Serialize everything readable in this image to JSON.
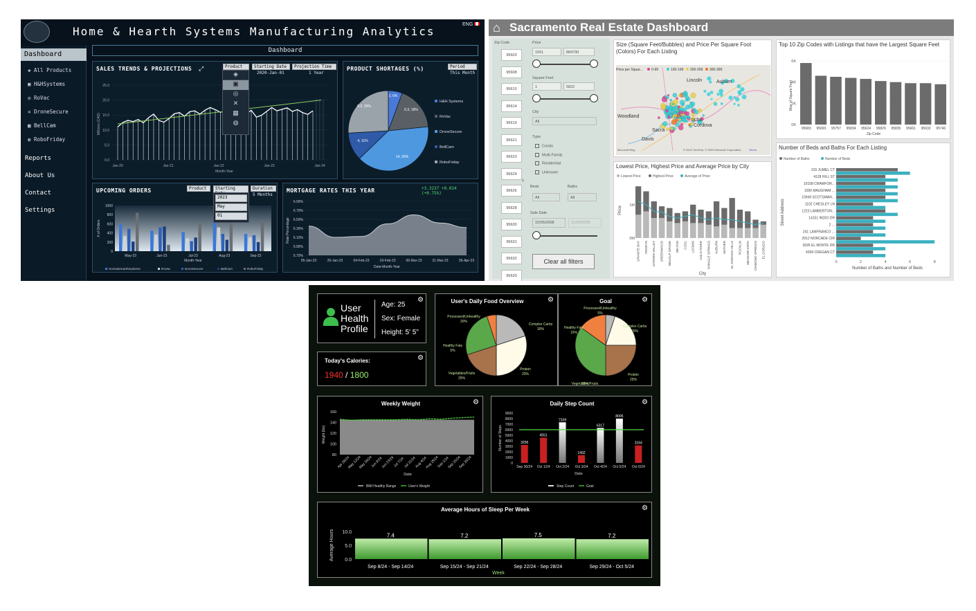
{
  "p1": {
    "title": "Home & Hearth Systems Manufacturing Analytics",
    "lang": "ENG",
    "nav": {
      "dashboard": "Dashboard",
      "reports": "Reports",
      "about": "About Us",
      "contact": "Contact",
      "settings": "Settings"
    },
    "products": [
      "All Products",
      "H&HSystems",
      "RoVac",
      "DroneSecure",
      "BellCam",
      "RoboFriday"
    ],
    "header_label": "Dashboard",
    "sales": {
      "title": "SALES TRENDS & PROJECTIONS",
      "product_sel": "Product",
      "start_sel": "Starting Date",
      "start_val": "2020-Jan-01",
      "proj_sel": "Projection Time",
      "proj_val": "1 Year",
      "ylabel": "Millions (CAD)",
      "xlabel": "Month-Year",
      "yticks": [
        "25.0",
        "20.0",
        "15.0",
        "10.0",
        "5.0",
        "0.0"
      ],
      "xticks": [
        "Jan-20",
        "Jan-21",
        "Jan-22",
        "Jan-23",
        "Jan-24"
      ]
    },
    "shortages": {
      "title": "PRODUCT SHORTAGES (%)",
      "period_sel": "Period",
      "period_val": "This Month",
      "labels": [
        "2, 6%",
        "6.3, 18%",
        "14, 39%",
        "4, 11%",
        "9.2, 26%"
      ],
      "legend": [
        "H&H Systems",
        "RoVac",
        "DroneSecure",
        "BellCam",
        "RoboFriday"
      ]
    },
    "orders": {
      "title": "UPCOMING ORDERS",
      "product_sel": "Product",
      "start_sel": "Starting Date",
      "dur_sel": "Duration",
      "dur_val": "5 Months",
      "drop": [
        "2023",
        "May",
        "01"
      ],
      "ylabel": "# of Orders",
      "xlabel": "Month-Year",
      "yticks": [
        "1000",
        "800",
        "600",
        "400",
        "200",
        "0"
      ],
      "xticks": [
        "May-23",
        "Jun-23",
        "Jul-23",
        "Aug-23",
        "Sep-23"
      ],
      "legend": [
        "Home&HearthSystems",
        "RoVac",
        "DroneSecure",
        "BellCam",
        "RoboFriday"
      ]
    },
    "mortgage": {
      "title": "MORTGAGE RATES THIS YEAR",
      "change": "+3.3237 +0.024 (+0.75%)",
      "ylabel": "Rate Percentage",
      "xlabel": "Date-Month-Year",
      "yticks": [
        "6.90%",
        "6.70%",
        "6.50%",
        "6.30%",
        "6.10%",
        "5.90%",
        "5.70%"
      ],
      "xticks": [
        "05-Jan-23",
        "20-Jan-23",
        "04-Feb-23",
        "19-Feb-23",
        "06-Mar-23",
        "21-Mar-23",
        "05-Apr-23"
      ]
    }
  },
  "p2": {
    "title": "Sacramento Real Estate Dashboard",
    "zip_label": "Zip Code",
    "zips": [
      "95603",
      "95608",
      "95610",
      "95614",
      "95619",
      "95621",
      "95623",
      "95624",
      "95626",
      "95628",
      "95630",
      "95631",
      "95632",
      "95633"
    ],
    "price_label": "Price",
    "price_min": "1551",
    "price_max": "884790",
    "sqft_label": "Square Feet",
    "sqft_min": "1",
    "sqft_max": "5822",
    "city_label": "City",
    "city_val": "All",
    "type_label": "Type",
    "types": [
      "Condo",
      "Multi-Family",
      "Residential",
      "Unknown"
    ],
    "beds_label": "Beds",
    "baths_label": "Baths",
    "beds_val": "All",
    "baths_val": "All",
    "sale_label": "Sale Date",
    "sale_from": "15/05/2008",
    "sale_to": "21/05/2008",
    "clear": "Clear all filters",
    "map": {
      "title": "Size (Square Feet/Bubbles) and Price Per Square Foot (Colors) For Each Listing",
      "legend_title": "Price per Squar...",
      "legend": [
        "0-99",
        "100-199",
        "200-299",
        "300-399"
      ],
      "legend_colors": [
        "#e0409a",
        "#2fd0d8",
        "#e8d040",
        "#f07020"
      ],
      "places": [
        "Lincoln",
        "Auburn",
        "Woodland",
        "Sacra",
        "Davis",
        "Cordova",
        "ncho"
      ],
      "credit": "© 2024 TomTom, © 2024 Microsoft Corporation",
      "terms": "Terms",
      "bing": "Microsoft Bing"
    },
    "zipbars": {
      "title": "Top 10 Zip Codes with Listings that have the Largest Square Feet",
      "ylabel": "Max of Square Feet",
      "xlabel": "Zip Code",
      "yticks": [
        "6K",
        "4K",
        "2K",
        "0K"
      ]
    },
    "price": {
      "title": "Lowest Price, Highest Price and Average Price by City",
      "legend": [
        "Lowest Price",
        "Highest Price",
        "Average of Price"
      ],
      "ylabel": "Price",
      "xlabel": "City",
      "yticks": [
        "1M",
        "0M"
      ]
    },
    "beds": {
      "title": "Number of Beds and Baths For Each Listing",
      "legend": [
        "Number of Baths",
        "Number of Beds"
      ],
      "ylabel": "Street Address",
      "xlabel": "Number of Baths and Number of Beds",
      "xticks": [
        "0",
        "2",
        "4",
        "6",
        "8"
      ]
    }
  },
  "p3": {
    "profile": {
      "title_1": "User",
      "title_2": "Health",
      "title_3": "Profile",
      "age": "Age: 25",
      "sex": "Sex: Female",
      "height": "Height: 5' 5\""
    },
    "cal": {
      "title": "Today's Calories:",
      "current": "1940",
      "sep": " / ",
      "goal": "1800"
    },
    "food": {
      "title": "User's Daily Food Overview",
      "labels": [
        "Processed/Unhealthy",
        "20%",
        "Complex Carbs",
        "30%",
        "Healthy Fats",
        "5%",
        "Protein",
        "20%",
        "Vegetables/Fruits",
        "25%"
      ]
    },
    "goal": {
      "title": "Goal",
      "labels": [
        "Processed/Unhealthy",
        "5%",
        "Healthy Fats",
        "15%",
        "Complex Carbs",
        "20%",
        "Protein",
        "25%",
        "Vegetables/Fruits",
        "35%"
      ]
    },
    "weight": {
      "title": "Weekly Weight",
      "ylabel": "Weight (lbs)",
      "xlabel": "Date",
      "yticks": [
        "160",
        "140",
        "120",
        "100",
        "80"
      ],
      "xticks": [
        "Apr 28/24",
        "May 12/24",
        "May 26/24",
        "Jun 9/24",
        "Jun 23/24",
        "Jul 7/24",
        "Jul 21/24",
        "Aug 4/24",
        "Aug 18/24",
        "Sep 1/24",
        "Sep 15/24",
        "Sep 29/24"
      ],
      "legend": [
        "BMI Healthy Range",
        "User's Weight"
      ]
    },
    "steps": {
      "title": "Daily Step Count",
      "ylabel": "Number of Steps",
      "xlabel": "Date",
      "yticks": [
        "9000",
        "8000",
        "7000",
        "6000",
        "5000",
        "4000",
        "3000",
        "2000",
        "1000",
        "0"
      ],
      "legend": [
        "Step Count",
        "Goal"
      ]
    },
    "sleep": {
      "title": "Average Hours of Sleep Per Week",
      "ylabel": "Average Hours",
      "xlabel": "Week",
      "yticks": [
        "10.0",
        "5.0",
        "0.0"
      ]
    }
  },
  "chart_data": [
    {
      "type": "line",
      "title": "SALES TRENDS & PROJECTIONS",
      "xlabel": "Month-Year",
      "ylabel": "Millions (CAD)",
      "ylim": [
        0,
        25
      ],
      "series": [
        {
          "name": "Sales",
          "values": [
            11,
            12.5,
            13.2,
            12.8,
            13.5,
            12.4,
            14.1,
            15.3,
            13.2,
            12.6,
            13.8,
            15.4,
            15.8,
            14.6,
            16.1,
            16.4,
            15.3,
            16.6,
            17.5,
            16.8,
            15.9,
            16.5,
            17.8,
            18.4,
            15.8,
            15.2,
            16.6,
            14.3,
            14.9,
            16.2,
            17.5,
            16.4,
            16.9,
            17.4,
            16.2,
            16.8,
            15.8,
            15.2,
            16.4
          ]
        },
        {
          "name": "Trend",
          "values": [
            12,
            20
          ]
        }
      ]
    },
    {
      "type": "pie",
      "title": "PRODUCT SHORTAGES (%)",
      "categories": [
        "H&H Systems",
        "RoVac",
        "DroneSecure",
        "BellCam",
        "RoboFriday"
      ],
      "values": [
        2,
        6.3,
        14,
        4,
        9.2
      ]
    },
    {
      "type": "bar",
      "title": "UPCOMING ORDERS",
      "categories": [
        "May-23",
        "Jun-23",
        "Jul-23",
        "Aug-23",
        "Sep-23"
      ],
      "ylim": [
        0,
        1000
      ],
      "series": [
        {
          "name": "Home&HearthSystems",
          "values": [
            600,
            450,
            420,
            650,
            380
          ]
        },
        {
          "name": "RoVac",
          "values": [
            330,
            360,
            280,
            520,
            300
          ]
        },
        {
          "name": "DroneSecure",
          "values": [
            490,
            520,
            220,
            380,
            350
          ]
        },
        {
          "name": "BellCam",
          "values": [
            210,
            540,
            300,
            250,
            200
          ]
        },
        {
          "name": "RoboFriday",
          "values": [
            840,
            140,
            620,
            780,
            670
          ]
        }
      ]
    },
    {
      "type": "area",
      "title": "MORTGAGE RATES THIS YEAR",
      "x": [
        "05-Jan-23",
        "20-Jan-23",
        "04-Feb-23",
        "19-Feb-23",
        "06-Mar-23",
        "21-Mar-23",
        "05-Apr-23"
      ],
      "values": [
        6.35,
        6.1,
        6.12,
        6.4,
        6.6,
        6.42,
        6.32
      ],
      "ylim": [
        5.7,
        6.9
      ]
    },
    {
      "type": "bar",
      "title": "Top 10 Zip Codes with Listings that have the Largest Square Feet",
      "categories": [
        "95683",
        "95693",
        "95757",
        "95834",
        "95624",
        "95829",
        "95835",
        "95661",
        "95632",
        "95746"
      ],
      "values": [
        5800,
        4600,
        4500,
        4400,
        4300,
        4100,
        4000,
        3900,
        3900,
        3800
      ]
    },
    {
      "type": "bar",
      "title": "Lowest Price, Highest Price and Average Price by City",
      "categories": [
        "GRANITE BAY",
        "PENRYN",
        "GARDEN VALLEY",
        "GREENWOOD",
        "WALNUT GROVE",
        "WILTON",
        "COOL",
        "LOOMIS",
        "GOLD RIVER",
        "SHINGLE SPRINGS",
        "AUBURN",
        "MATHER",
        "EL DORADO HILLS",
        "ROCKLIN",
        "MEADOW VISTA",
        "DIAMOND SPRINGS",
        "EL DORADO"
      ],
      "series": [
        {
          "name": "Highest Price",
          "values": [
            1.55,
            1.4,
            1.1,
            0.95,
            0.9,
            0.75,
            0.8,
            1.0,
            0.85,
            0.8,
            1.1,
            0.9,
            1.2,
            0.85,
            0.8,
            0.55,
            0.5
          ]
        },
        {
          "name": "Lowest Price",
          "values": [
            0.7,
            0.8,
            0.6,
            0.6,
            0.5,
            0.45,
            0.5,
            0.45,
            0.45,
            0.4,
            0.35,
            0.4,
            0.3,
            0.3,
            0.3,
            0.3,
            0.4
          ]
        },
        {
          "name": "Average of Price",
          "values": [
            1.1,
            1.0,
            0.8,
            0.78,
            0.65,
            0.6,
            0.65,
            0.7,
            0.6,
            0.55,
            0.6,
            0.55,
            0.55,
            0.5,
            0.45,
            0.4,
            0.45
          ]
        }
      ]
    },
    {
      "type": "bar",
      "title": "Number of Beds and Baths For Each Listing",
      "categories": [
        "315 JUMEL CT",
        "4128 HILL ST",
        "10158 CRAWFOR...",
        "1090 MAUGHAM ...",
        "10949 SCOTSMAN...",
        "1102 CHESLEY LN",
        "1223 LAMBERTON...",
        "14151 INDIO DR",
        "2 ...",
        "241 LANFRANCO ...",
        "2912 NORCADE CIR",
        "3935 EL MONTE DR",
        "4359 CREGAN CT"
      ],
      "series": [
        {
          "name": "Number of Baths",
          "values": [
            5,
            4,
            4,
            4,
            4,
            3,
            4,
            3,
            3,
            3,
            2,
            3,
            3
          ]
        },
        {
          "name": "Number of Beds",
          "values": [
            6,
            5,
            5,
            5,
            5,
            4,
            5,
            4,
            4,
            4,
            8,
            4,
            4
          ]
        }
      ]
    },
    {
      "type": "pie",
      "title": "User's Daily Food Overview",
      "categories": [
        "Processed/Unhealthy",
        "Complex Carbs",
        "Protein",
        "Vegetables/Fruits",
        "Healthy Fats"
      ],
      "values": [
        20,
        30,
        20,
        25,
        5
      ]
    },
    {
      "type": "pie",
      "title": "Goal",
      "categories": [
        "Processed/Unhealthy",
        "Complex Carbs",
        "Protein",
        "Vegetables/Fruits",
        "Healthy Fats"
      ],
      "values": [
        5,
        20,
        25,
        35,
        15
      ]
    },
    {
      "type": "area",
      "title": "Weekly Weight",
      "xlabel": "Date",
      "ylabel": "Weight (lbs)",
      "ylim": [
        80,
        160
      ],
      "series": [
        {
          "name": "User's Weight",
          "values": [
            146,
            144,
            145,
            145,
            145,
            145,
            146,
            145,
            147,
            146,
            148,
            149,
            150
          ]
        },
        {
          "name": "BMI Healthy Range",
          "values": [
            145,
            145,
            145,
            145,
            145,
            145,
            145,
            145,
            145,
            145,
            145,
            145,
            145
          ]
        }
      ]
    },
    {
      "type": "bar",
      "title": "Daily Step Count",
      "categories": [
        "Sep 30/24",
        "Oct 1/24",
        "Oct 2/24",
        "Oct 3/24",
        "Oct 4/24",
        "Oct 5/24",
        "Oct 6/24"
      ],
      "values": [
        3256,
        4551,
        7339,
        1402,
        6317,
        8005,
        3164
      ],
      "goal": 6000,
      "ylim": [
        0,
        9000
      ]
    },
    {
      "type": "bar",
      "title": "Average Hours of Sleep Per Week",
      "categories": [
        "Sep 8/24 - Sep 14/24",
        "Sep 15/24 - Sep 21/24",
        "Sep 22/24 - Sep 28/24",
        "Sep 29/24 - Oct 5/24"
      ],
      "values": [
        7.4,
        7.2,
        7.5,
        7.2
      ],
      "ylim": [
        0,
        10
      ]
    }
  ]
}
